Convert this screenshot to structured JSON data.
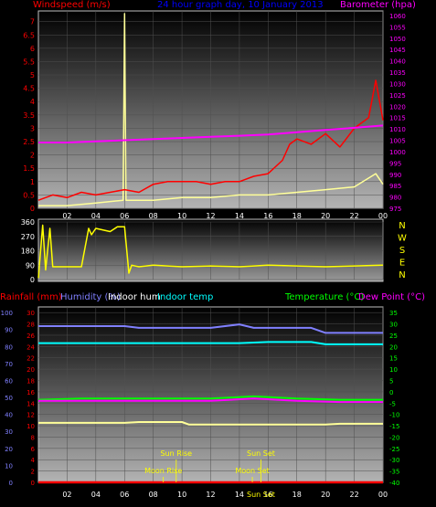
{
  "header": {
    "windspeed_label": "Windspeed (m/s)",
    "title": "24 hour graph day, 10 January 2013",
    "barometer_label": "Barometer (hpa)"
  },
  "bottom_header": {
    "rainfall_label": "Rainfall (mm)",
    "humidity_label": "Humidity (%)",
    "indoor_hum_label": "Indoor hum",
    "indoor_temp_label": "Indoor temp",
    "temperature_label": "Temperature (°C)",
    "dew_point_label": "Dew Point (°C)"
  },
  "colors": {
    "wind": "#ff0000",
    "gust": "#ffff99",
    "barometer": "#ff00ff",
    "direction": "#ffff00",
    "humidity": "#8080ff",
    "indoor_hum": "#ffff99",
    "indoor_temp": "#00ffff",
    "temperature": "#00ff00",
    "dew_point": "#ff00ff",
    "rainfall": "#ff0000"
  },
  "chart_data": [
    {
      "type": "line",
      "name": "wind_barometer",
      "x_ticks": [
        "02",
        "04",
        "06",
        "08",
        "10",
        "12",
        "14",
        "16",
        "18",
        "20",
        "22",
        "00"
      ],
      "y_left_ticks": [
        "0",
        "0.5",
        "1",
        "1.5",
        "2",
        "2.5",
        "3",
        "3.5",
        "4",
        "4.5",
        "5",
        "5.5",
        "6",
        "6.5",
        "7"
      ],
      "ylim_left": [
        0,
        7.4
      ],
      "y_right_ticks": [
        "975",
        "980",
        "985",
        "990",
        "995",
        "1000",
        "1005",
        "1010",
        "1015",
        "1020",
        "1025",
        "1030",
        "1035",
        "1040",
        "1045",
        "1050",
        "1055",
        "1060"
      ],
      "ylim_right": [
        975,
        1062
      ],
      "xlim": [
        0,
        24
      ],
      "series": [
        {
          "name": "Windspeed",
          "unit": "m/s",
          "x": [
            0,
            1,
            2,
            3,
            4,
            5,
            6,
            7,
            8,
            9,
            10,
            11,
            12,
            13,
            14,
            15,
            16,
            17,
            17.5,
            18,
            19,
            20,
            21,
            22,
            23,
            23.5,
            24
          ],
          "values": [
            0.3,
            0.5,
            0.4,
            0.6,
            0.5,
            0.6,
            0.7,
            0.6,
            0.9,
            1.0,
            1.0,
            1.0,
            0.9,
            1.0,
            1.0,
            1.2,
            1.3,
            1.8,
            2.4,
            2.6,
            2.4,
            2.8,
            2.3,
            3.0,
            3.4,
            4.8,
            3.3
          ]
        },
        {
          "name": "Gust",
          "x": [
            0,
            2,
            4,
            5.9,
            6,
            6.1,
            8,
            10,
            12,
            14,
            16,
            18,
            20,
            22,
            23.5,
            24
          ],
          "values": [
            0.1,
            0.1,
            0.2,
            0.3,
            7.3,
            0.3,
            0.3,
            0.4,
            0.4,
            0.5,
            0.5,
            0.6,
            0.7,
            0.8,
            1.3,
            0.9
          ]
        },
        {
          "name": "Barometer",
          "unit": "hpa",
          "x": [
            0,
            2,
            4,
            6,
            8,
            10,
            12,
            14,
            16,
            18,
            20,
            22,
            24
          ],
          "values": [
            1004,
            1004,
            1004.5,
            1005,
            1005.5,
            1006,
            1006.5,
            1007,
            1007.5,
            1008.5,
            1009.5,
            1010.5,
            1011.5
          ]
        }
      ]
    },
    {
      "type": "line",
      "name": "wind_direction",
      "y_ticks": [
        "0",
        "90",
        "180",
        "270",
        "360"
      ],
      "ylim": [
        0,
        360
      ],
      "compass_labels": [
        "N",
        "W",
        "S",
        "E",
        "N"
      ],
      "xlim": [
        0,
        24
      ],
      "series": [
        {
          "name": "Wind direction",
          "x": [
            0,
            0.3,
            0.5,
            0.8,
            1,
            1.5,
            3,
            3.5,
            3.7,
            4,
            5,
            5.5,
            6,
            6.3,
            6.5,
            7,
            8,
            10,
            12,
            14,
            16,
            18,
            20,
            22,
            24
          ],
          "values": [
            10,
            340,
            60,
            320,
            80,
            80,
            80,
            320,
            280,
            320,
            300,
            330,
            330,
            40,
            90,
            80,
            90,
            80,
            85,
            80,
            90,
            85,
            80,
            85,
            90
          ]
        }
      ]
    },
    {
      "type": "line",
      "name": "temp_humidity_rain",
      "y_left_rain_ticks": [
        "0",
        "2",
        "4",
        "6",
        "8",
        "10",
        "12",
        "14",
        "16",
        "18",
        "20",
        "22",
        "24",
        "26",
        "28",
        "30"
      ],
      "y_left_hum_ticks": [
        "0",
        "10",
        "20",
        "30",
        "40",
        "50",
        "60",
        "70",
        "80",
        "90",
        "100"
      ],
      "y_right_temp_ticks": [
        "35",
        "30",
        "25",
        "20",
        "15",
        "10",
        "5",
        "0",
        "-5",
        "-10",
        "-15",
        "-20",
        "-25",
        "-30",
        "-35",
        "-40"
      ],
      "ylim_rain": [
        0,
        31
      ],
      "ylim_hum": [
        0,
        103.3
      ],
      "ylim_temp": [
        -40,
        37.5
      ],
      "xlim": [
        0,
        24
      ],
      "series": [
        {
          "name": "Humidity",
          "x": [
            0,
            6,
            7,
            8,
            12,
            14,
            15,
            19,
            20,
            24
          ],
          "values": [
            92,
            92,
            91,
            91,
            91,
            93,
            91,
            91,
            88,
            88
          ]
        },
        {
          "name": "Indoor hum",
          "x": [
            0,
            6,
            7,
            10,
            10.5,
            20,
            21,
            24
          ],
          "values": [
            35,
            35,
            35.5,
            35.5,
            34,
            34,
            34.5,
            34.5
          ]
        },
        {
          "name": "Indoor temp",
          "x": [
            0,
            10,
            14,
            16,
            19,
            20,
            24
          ],
          "values": [
            21.5,
            21.5,
            21.5,
            22,
            22,
            21,
            21
          ]
        },
        {
          "name": "Temperature",
          "x": [
            0,
            3,
            6,
            9,
            12,
            15,
            18,
            21,
            24
          ],
          "values": [
            -3.5,
            -3,
            -3,
            -3,
            -3,
            -2,
            -3,
            -3.5,
            -3.5
          ]
        },
        {
          "name": "Dew Point",
          "x": [
            0,
            3,
            6,
            9,
            12,
            15,
            18,
            21,
            24
          ],
          "values": [
            -4,
            -4,
            -4,
            -4,
            -4,
            -3,
            -4,
            -4.5,
            -4.5
          ]
        },
        {
          "name": "Rainfall",
          "x": [
            0,
            24
          ],
          "values": [
            0,
            0
          ]
        }
      ],
      "annotations": [
        {
          "label": "Sun Rise",
          "x": 9.6,
          "row": "upper"
        },
        {
          "label": "Sun Set",
          "x": 15.5,
          "row": "upper"
        },
        {
          "label": "Moon Rise",
          "x": 8.7,
          "row": "lower"
        },
        {
          "label": "Moon Set",
          "x": 14.9,
          "row": "lower"
        },
        {
          "label": "Sun Set",
          "x": 15.5,
          "row": "bottom"
        },
        {
          "label": "14",
          "x": 14,
          "row": "bottom-tick"
        }
      ]
    }
  ]
}
